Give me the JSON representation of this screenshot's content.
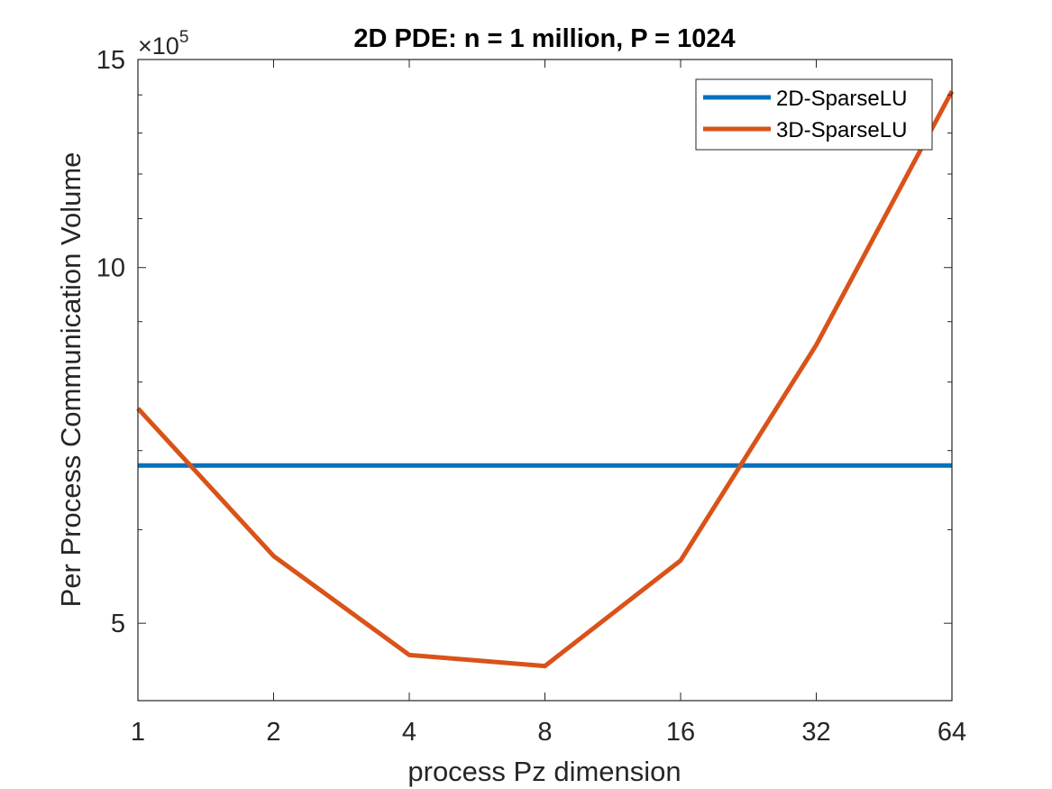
{
  "chart_data": {
    "type": "line",
    "title": "2D PDE: n = 1 million, P = 1024",
    "xlabel": "process Pz dimension",
    "ylabel": "Per Process Communication Volume",
    "x_scale": "log2",
    "y_scale": "log",
    "y_exponent_label": "×10",
    "y_exponent_power": "5",
    "categories": [
      "1",
      "2",
      "4",
      "8",
      "16",
      "32",
      "64"
    ],
    "x": [
      1,
      2,
      4,
      8,
      16,
      32,
      64
    ],
    "xlim": [
      1,
      64
    ],
    "ylim": [
      4.3,
      15
    ],
    "yticks": [
      5,
      10,
      15
    ],
    "ytick_labels": [
      "5",
      "10",
      "15"
    ],
    "series": [
      {
        "name": "2D-SparseLU",
        "color": "#0072BD",
        "values": [
          6.8,
          6.8,
          6.8,
          6.8,
          6.8,
          6.8,
          6.8
        ]
      },
      {
        "name": "3D-SparseLU",
        "color": "#D95319",
        "values": [
          7.6,
          5.7,
          4.7,
          4.6,
          5.65,
          8.6,
          14.1
        ]
      }
    ],
    "legend_position": "top-right"
  }
}
